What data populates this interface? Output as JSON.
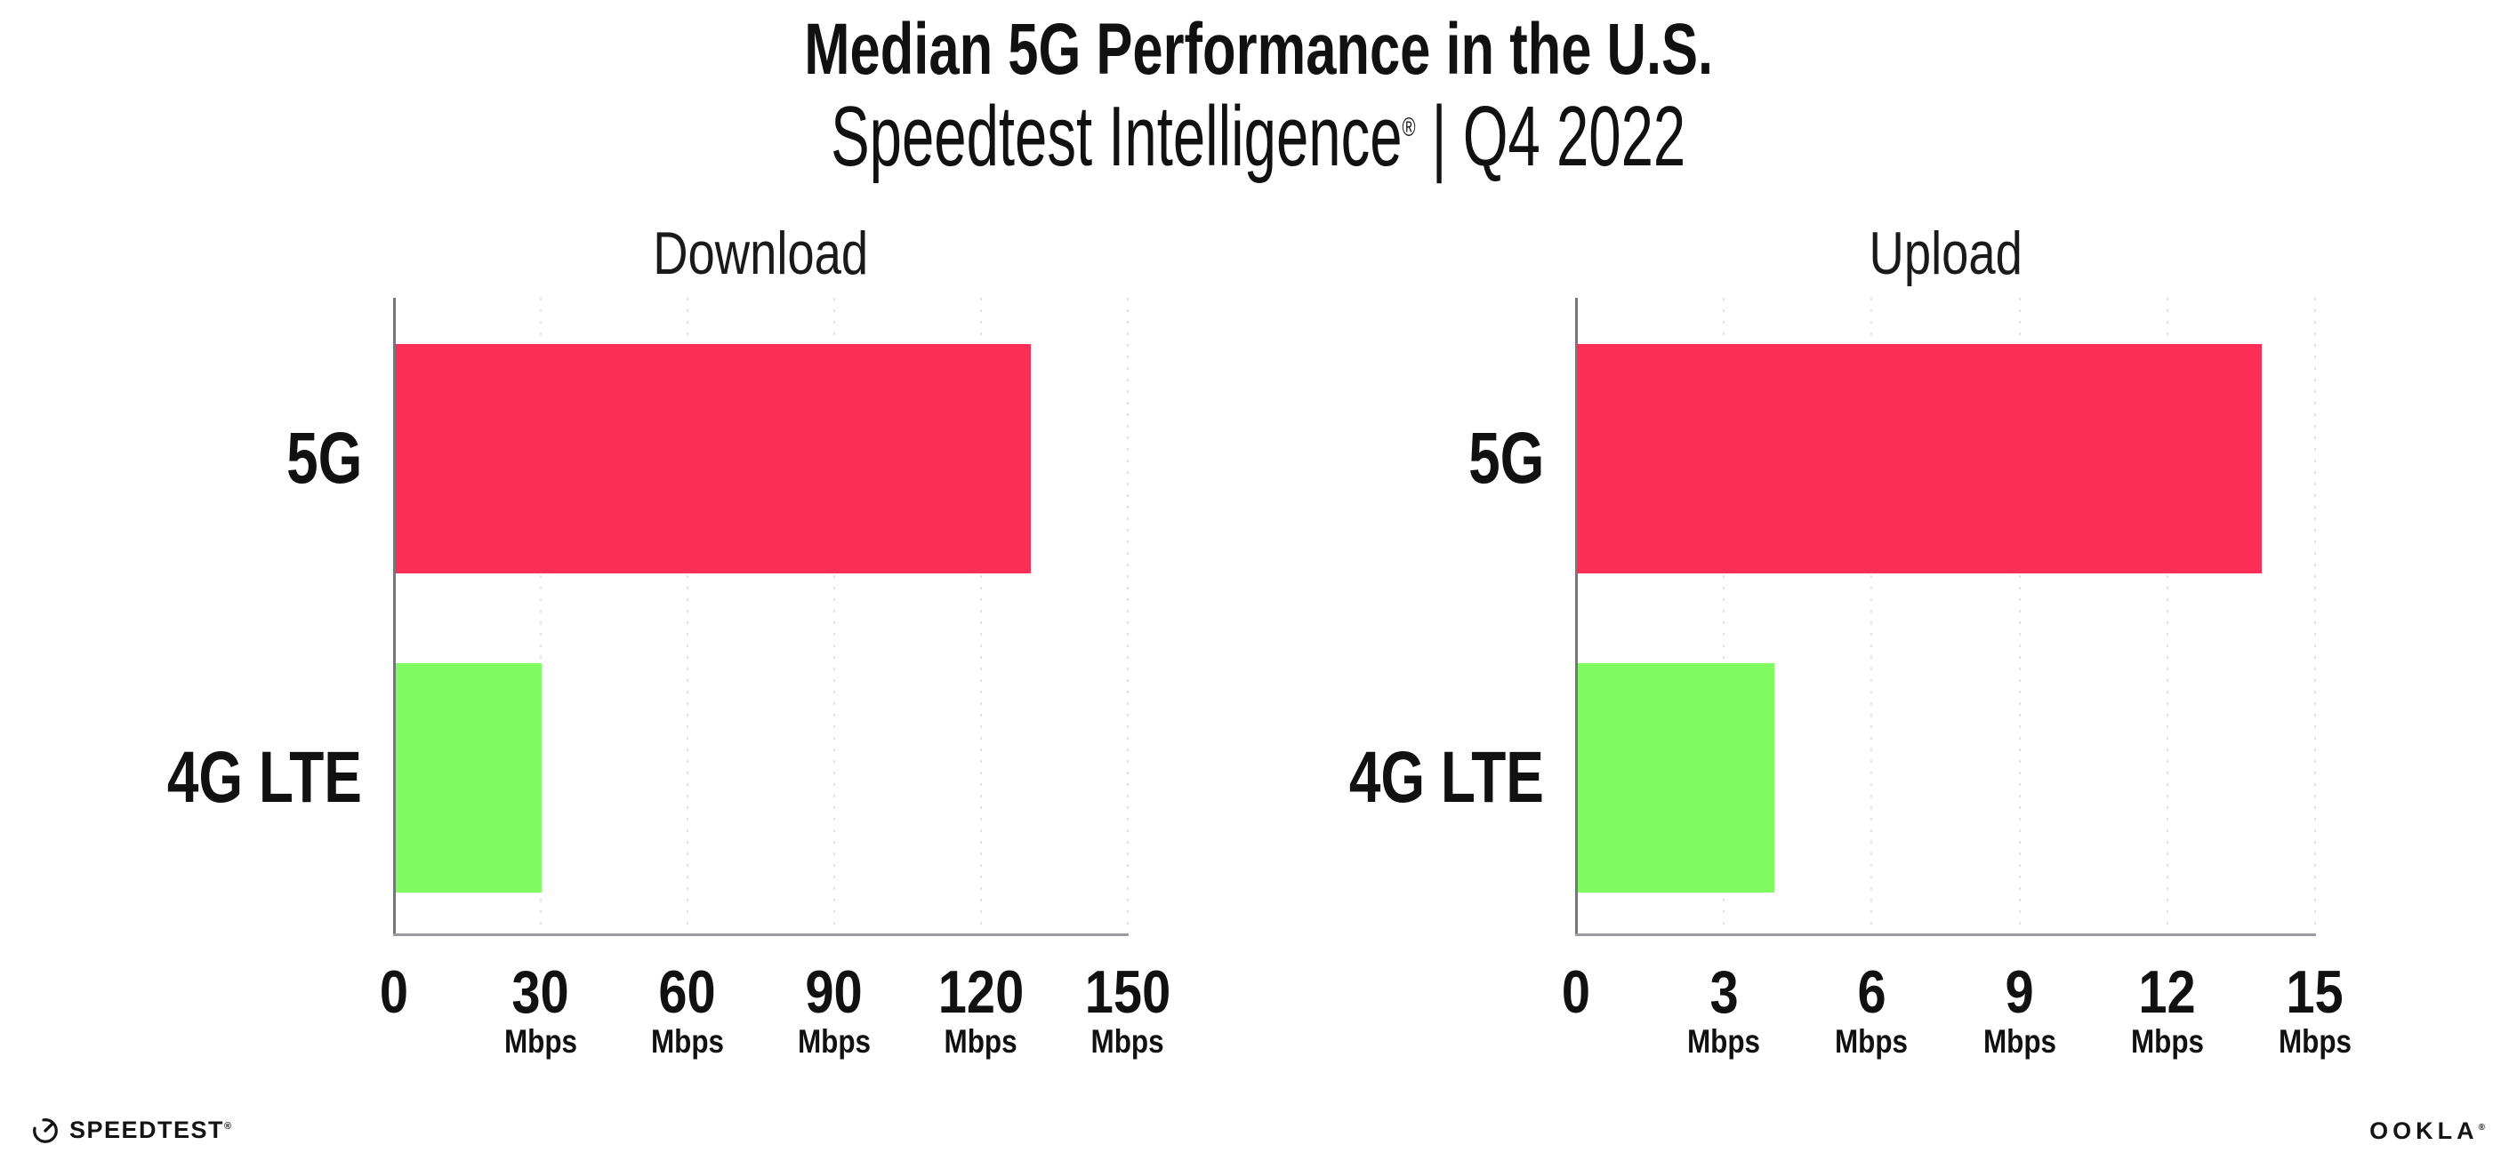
{
  "header": {
    "title": "Median 5G Performance in the U.S.",
    "subtitle_brand": "Speedtest Intelligence",
    "subtitle_reg": "®",
    "subtitle_rest": " | Q4 2022"
  },
  "chart_data": [
    {
      "type": "bar",
      "orientation": "horizontal",
      "title": "Download",
      "categories": [
        "5G",
        "4G LTE"
      ],
      "values": [
        130,
        30
      ],
      "value_unit": "Mbps",
      "xlim": [
        0,
        150
      ],
      "xticks": [
        0,
        30,
        60,
        90,
        120,
        150
      ],
      "tick_labels": [
        {
          "label": "0",
          "unit": ""
        },
        {
          "label": "30",
          "unit": "Mbps"
        },
        {
          "label": "60",
          "unit": "Mbps"
        },
        {
          "label": "90",
          "unit": "Mbps"
        },
        {
          "label": "120",
          "unit": "Mbps"
        },
        {
          "label": "150",
          "unit": "Mbps"
        }
      ],
      "bar_colors": [
        "#fd2e55",
        "#80fb61"
      ],
      "grid": "vertical-dotted",
      "legend": "none"
    },
    {
      "type": "bar",
      "orientation": "horizontal",
      "title": "Upload",
      "categories": [
        "5G",
        "4G LTE"
      ],
      "values": [
        13.9,
        4
      ],
      "value_unit": "Mbps",
      "xlim": [
        0,
        15
      ],
      "xticks": [
        0,
        3,
        6,
        9,
        12,
        15
      ],
      "tick_labels": [
        {
          "label": "0",
          "unit": ""
        },
        {
          "label": "3",
          "unit": "Mbps"
        },
        {
          "label": "6",
          "unit": "Mbps"
        },
        {
          "label": "9",
          "unit": "Mbps"
        },
        {
          "label": "12",
          "unit": "Mbps"
        },
        {
          "label": "15",
          "unit": "Mbps"
        }
      ],
      "bar_colors": [
        "#fd2e55",
        "#80fb61"
      ],
      "grid": "vertical-dotted",
      "legend": "none"
    }
  ],
  "footer": {
    "speedtest_logo_text": "SPEEDTEST",
    "speedtest_reg": "®",
    "ookla_logo_text": "OOKLA",
    "ookla_reg": "®"
  },
  "colors": {
    "bar_5g": "#fd2e55",
    "bar_4g_lte": "#80fb61",
    "gridline": "#e2e2ee",
    "x_axis_line": "#9b9ba1",
    "y_axis_spine": "#75757d",
    "text": "#111111",
    "background": "#ffffff"
  }
}
